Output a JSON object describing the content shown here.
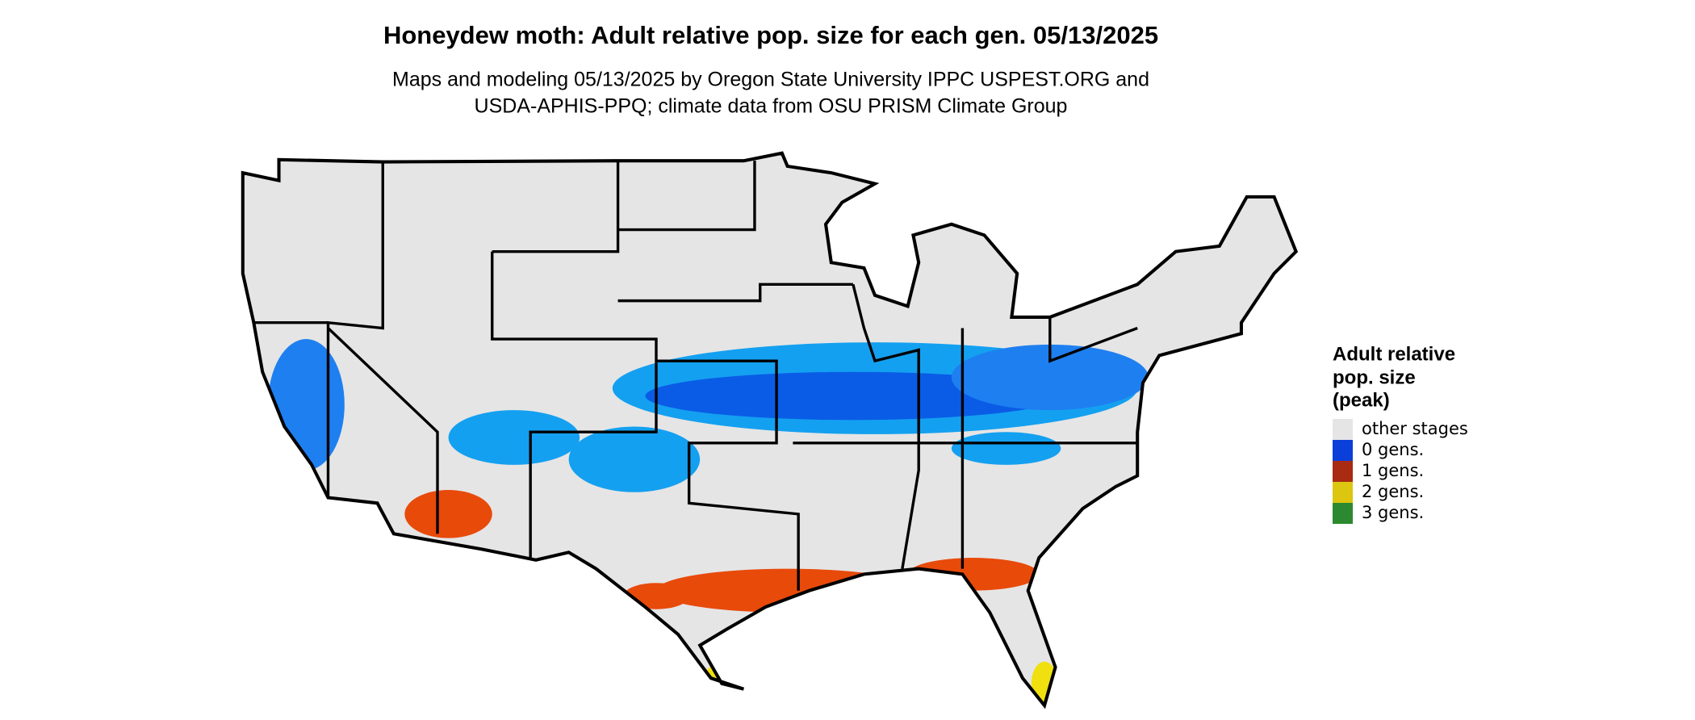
{
  "title": "Honeydew moth: Adult relative pop. size for each gen. 05/13/2025",
  "subtitle": [
    "Maps and modeling 05/13/2025 by Oregon State University IPPC USPEST.ORG and",
    "USDA-APHIS-PPQ; climate data from OSU PRISM Climate Group"
  ],
  "legend": {
    "title": [
      "Adult relative",
      "pop. size",
      "(peak)"
    ],
    "items": [
      {
        "label": "other stages",
        "color": "#e5e5e5"
      },
      {
        "label": "0 gens.",
        "color": "#0a3fd9"
      },
      {
        "label": "1 gens.",
        "color": "#a82b12"
      },
      {
        "label": "2 gens.",
        "color": "#dcc60f"
      },
      {
        "label": "3 gens.",
        "color": "#2b8a2f"
      }
    ]
  }
}
